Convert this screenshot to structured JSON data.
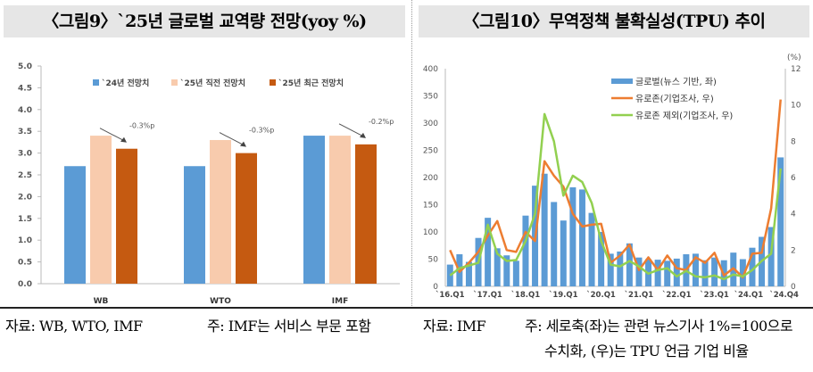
{
  "left": {
    "title": "〈그림9〉`25년 글로벌 교역량 전망(yoy %)",
    "source": "자료: WB, WTO, IMF",
    "note": "주: IMF는 서비스 부문 포함"
  },
  "right": {
    "title": "〈그림10〉무역정책 불확실성(TPU) 추이",
    "source": "자료: IMF",
    "note1": "주: 세로축(좌)는 관련 뉴스기사 1%=100으로",
    "note2": "수치화, (우)는 TPU 언급 기업 비율"
  },
  "chart_data": [
    {
      "type": "bar",
      "categories": [
        "WB",
        "WTO",
        "IMF"
      ],
      "ylim": [
        0,
        5
      ],
      "yticks": [
        "0.0",
        "0.5",
        "1.0",
        "1.5",
        "2.0",
        "2.5",
        "3.0",
        "3.5",
        "4.0",
        "4.5",
        "5.0"
      ],
      "series": [
        {
          "name": "`24년 전망치",
          "values": [
            2.7,
            2.7,
            3.4
          ],
          "color": "#5b9bd5"
        },
        {
          "name": "`25년 직전 전망치",
          "values": [
            3.4,
            3.3,
            3.4
          ],
          "color": "#f8cbad"
        },
        {
          "name": "`25년 최근 전망치",
          "values": [
            3.1,
            3.0,
            3.2
          ],
          "color": "#c55a11"
        }
      ],
      "annotations": [
        "-0.3%p",
        "-0.3%p",
        "-0.2%p"
      ],
      "legend": "top"
    },
    {
      "type": "bar+line",
      "xticks": [
        "`16.Q1",
        "`17.Q1",
        "`18.Q1",
        "`19.Q1",
        "`20.Q1",
        "`21.Q1",
        "`22.Q1",
        "`23.Q1",
        "`24.Q1",
        "`24.Q4"
      ],
      "ylim_left": [
        0,
        400
      ],
      "yticks_left": [
        "0",
        "50",
        "100",
        "150",
        "200",
        "250",
        "300",
        "350",
        "400"
      ],
      "ylim_right": [
        0,
        12
      ],
      "yticks_right": [
        "0",
        "2",
        "4",
        "6",
        "8",
        "10",
        "12"
      ],
      "right_unit": "(%)",
      "series": [
        {
          "name": "글로벌(뉴스 기반, 좌)",
          "axis": "left",
          "kind": "bar",
          "color": "#5b9bd5",
          "values": [
            40,
            59,
            45,
            89,
            126,
            70,
            57,
            47,
            130,
            185,
            207,
            155,
            121,
            182,
            178,
            135,
            100,
            60,
            64,
            79,
            53,
            50,
            49,
            47,
            51,
            59,
            60,
            48,
            53,
            48,
            62,
            50,
            71,
            91,
            109,
            237
          ]
        },
        {
          "name": "유로존(기업조사, 우)",
          "axis": "right",
          "kind": "line",
          "color": "#ed7d31",
          "values": [
            2.0,
            0.8,
            1.3,
            1.9,
            2.8,
            3.6,
            2.0,
            1.9,
            3.0,
            2.5,
            6.9,
            6.1,
            5.5,
            4.0,
            3.3,
            3.4,
            3.45,
            1.3,
            1.7,
            2.3,
            0.9,
            1.6,
            0.9,
            1.7,
            1.0,
            0.9,
            1.6,
            1.3,
            1.85,
            0.6,
            1.0,
            0.5,
            1.8,
            1.85,
            4.3,
            10.3
          ]
        },
        {
          "name": "유로존 제외(기업조사, 우)",
          "axis": "right",
          "kind": "line",
          "color": "#92d050",
          "values": [
            0.6,
            1.0,
            1.15,
            1.3,
            3.4,
            1.8,
            1.4,
            1.45,
            2.5,
            4.0,
            9.5,
            8.0,
            5.0,
            6.1,
            5.75,
            4.6,
            2.5,
            1.2,
            1.1,
            1.4,
            1.1,
            0.7,
            0.9,
            1.0,
            0.55,
            0.85,
            0.55,
            0.5,
            0.6,
            0.4,
            0.65,
            0.55,
            0.9,
            1.4,
            1.8,
            6.5
          ]
        }
      ],
      "legend": "top-right"
    }
  ]
}
